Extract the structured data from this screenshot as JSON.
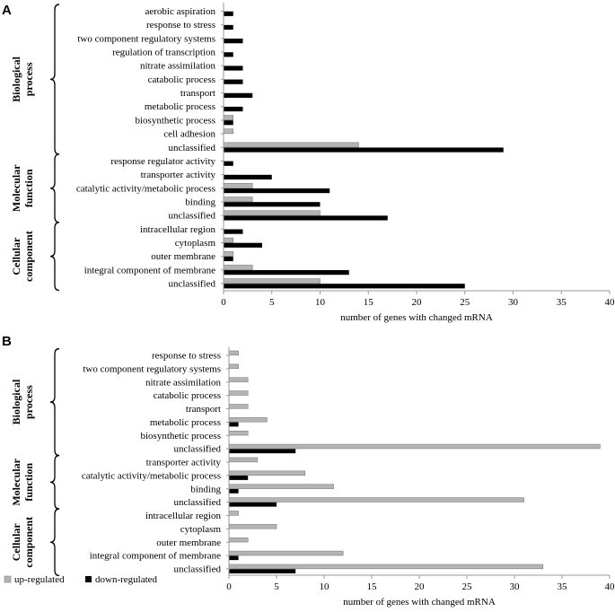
{
  "colors": {
    "up": "#b4b4b4",
    "down": "#000000",
    "axis": "#999999"
  },
  "legend": {
    "up_label": "up-regulated",
    "down_label": "down-regulated"
  },
  "chart_data": [
    {
      "type": "bar",
      "orientation": "horizontal",
      "panel_label": "A",
      "xlabel": "number of genes with changed mRNA",
      "xlim": [
        0,
        40
      ],
      "xticks": [
        0,
        5,
        10,
        15,
        20,
        25,
        30,
        35,
        40
      ],
      "grid": false,
      "groups": [
        {
          "label": "Biological process",
          "lines": [
            "Biological",
            "process"
          ],
          "categories": [
            "aerobic aspiration",
            "response to stress",
            "two component regulatory systems",
            "regulation of transcription",
            "nitrate assimilation",
            "catabolic process",
            "transport",
            "metabolic process",
            "biosynthetic process",
            "cell adhesion",
            "unclassified"
          ]
        },
        {
          "label": "Molecular function",
          "lines": [
            "Molecular",
            "function"
          ],
          "categories": [
            "response regulator activity",
            "transporter activity",
            "catalytic activity/metabolic process",
            "binding",
            "unclassified"
          ]
        },
        {
          "label": "Cellular component",
          "lines": [
            "Cellular",
            "component"
          ],
          "categories": [
            "intracellular region",
            "cytoplasm",
            "outer membrane",
            "integral component of membrane",
            "unclassified"
          ]
        }
      ],
      "series": [
        {
          "name": "up-regulated",
          "values": [
            0,
            0,
            0,
            0,
            0,
            0,
            0,
            0,
            1,
            1,
            14,
            0,
            0,
            3,
            3,
            10,
            0,
            1,
            1,
            3,
            10
          ]
        },
        {
          "name": "down-regulated",
          "values": [
            1,
            1,
            2,
            1,
            2,
            2,
            3,
            2,
            1,
            0,
            29,
            1,
            5,
            11,
            10,
            17,
            2,
            4,
            1,
            13,
            25
          ]
        }
      ]
    },
    {
      "type": "bar",
      "orientation": "horizontal",
      "panel_label": "B",
      "xlabel": "number of genes with changed mRNA",
      "xlim": [
        0,
        40
      ],
      "xticks": [
        0,
        5,
        10,
        15,
        20,
        25,
        30,
        35,
        40
      ],
      "grid": false,
      "groups": [
        {
          "label": "Biological process",
          "lines": [
            "Biological",
            "process"
          ],
          "categories": [
            "response to stress",
            "two component regulatory systems",
            "nitrate assimilation",
            "catabolic process",
            "transport",
            "metabolic process",
            "biosynthetic process",
            "unclassified"
          ]
        },
        {
          "label": "Molecular function",
          "lines": [
            "Molecular",
            "function"
          ],
          "categories": [
            "transporter activity",
            "catalytic activity/metabolic process",
            "binding",
            "unclassified"
          ]
        },
        {
          "label": "Cellular component",
          "lines": [
            "Cellular",
            "component"
          ],
          "categories": [
            "intracellular region",
            "cytoplasm",
            "outer membrane",
            "integral component of membrane",
            "unclassified"
          ]
        }
      ],
      "series": [
        {
          "name": "up-regulated",
          "values": [
            1,
            1,
            2,
            2,
            2,
            4,
            2,
            39,
            3,
            8,
            11,
            31,
            1,
            5,
            2,
            12,
            33
          ]
        },
        {
          "name": "down-regulated",
          "values": [
            0,
            0,
            0,
            0,
            0,
            1,
            0,
            7,
            0,
            2,
            1,
            5,
            0,
            0,
            0,
            1,
            7
          ]
        }
      ]
    }
  ]
}
